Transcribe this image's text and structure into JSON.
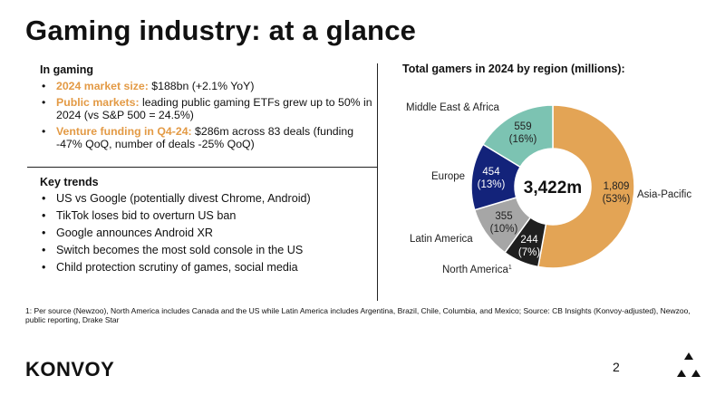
{
  "title": "Gaming industry: at a glance",
  "in_gaming": {
    "heading": "In gaming",
    "bullets": [
      {
        "highlight": "2024 market size:",
        "text": " $188bn (+2.1% YoY)"
      },
      {
        "highlight": "Public markets:",
        "text": " leading public gaming ETFs grew up to 50% in 2024 (vs S&P 500 = 24.5%)"
      },
      {
        "highlight": "Venture funding in Q4-24:",
        "text": " $286m across 83 deals (funding -47% QoQ, number of deals -25% QoQ)"
      }
    ]
  },
  "key_trends": {
    "heading": "Key trends",
    "bullets": [
      "US vs Google (potentially divest Chrome, Android)",
      "TikTok loses bid to overturn US ban",
      "Google announces Android XR",
      "Switch becomes the most sold console in the US",
      "Child protection scrutiny of games, social media"
    ]
  },
  "chart_data": {
    "type": "pie",
    "title": "Total gamers in 2024 by region (millions):",
    "center_label": "3,422m",
    "slices": [
      {
        "label": "Asia-Pacific",
        "value": 1809,
        "value_text": "1,809",
        "pct_text": "(53%)",
        "color": "#e3a455",
        "text_color": "#222222"
      },
      {
        "label": "North America",
        "label_sup": "1",
        "value": 244,
        "value_text": "244",
        "pct_text": "(7%)",
        "color": "#1f1f1f",
        "text_color": "#ffffff"
      },
      {
        "label": "Latin America",
        "value": 355,
        "value_text": "355",
        "pct_text": "(10%)",
        "color": "#a6a6a6",
        "text_color": "#222222"
      },
      {
        "label": "Europe",
        "value": 454,
        "value_text": "454",
        "pct_text": "(13%)",
        "color": "#13237a",
        "text_color": "#ffffff"
      },
      {
        "label": "Middle East & Africa",
        "value": 559,
        "value_text": "559",
        "pct_text": "(16%)",
        "color": "#7cc3b2",
        "text_color": "#222222"
      }
    ]
  },
  "footnote": "1: Per source (Newzoo), North America includes Canada and the US while Latin America includes Argentina, Brazil, Chile, Columbia, and Mexico; Source: CB Insights (Konvoy-adjusted), Newzoo, public reporting, Drake Star",
  "footer": {
    "logo": "KONVOY",
    "page_number": "2",
    "mark_icon": "konvoy-tri-mark-icon"
  },
  "colors": {
    "accent": "#e39a45"
  }
}
